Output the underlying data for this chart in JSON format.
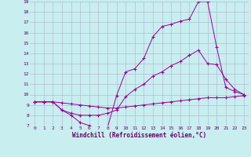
{
  "background_color": "#c8eef0",
  "grid_color": "#b0b0cc",
  "line_color": "#990099",
  "marker": "+",
  "xlim": [
    -0.5,
    23.5
  ],
  "ylim": [
    7,
    19
  ],
  "xticks": [
    0,
    1,
    2,
    3,
    4,
    5,
    6,
    7,
    8,
    9,
    10,
    11,
    12,
    13,
    14,
    15,
    16,
    17,
    18,
    19,
    20,
    21,
    22,
    23
  ],
  "yticks": [
    7,
    8,
    9,
    10,
    11,
    12,
    13,
    14,
    15,
    16,
    17,
    18,
    19
  ],
  "xlabel": "Windchill (Refroidissement éolien,°C)",
  "series": [
    [
      9.3,
      9.3,
      9.3,
      8.5,
      8.0,
      7.3,
      7.0,
      6.8,
      6.8,
      9.9,
      12.2,
      12.5,
      13.5,
      15.6,
      16.6,
      16.8,
      17.1,
      17.3,
      19.0,
      19.0,
      14.6,
      10.7,
      10.3,
      10.0
    ],
    [
      9.3,
      9.3,
      9.3,
      8.5,
      8.2,
      8.0,
      8.0,
      8.0,
      8.2,
      8.5,
      9.8,
      10.5,
      11.0,
      11.8,
      12.2,
      12.8,
      13.2,
      13.8,
      14.3,
      13.0,
      12.9,
      11.5,
      10.5,
      10.0
    ],
    [
      9.3,
      9.3,
      9.3,
      9.2,
      9.1,
      9.0,
      8.9,
      8.8,
      8.7,
      8.7,
      8.8,
      8.9,
      9.0,
      9.1,
      9.2,
      9.3,
      9.4,
      9.5,
      9.6,
      9.7,
      9.7,
      9.7,
      9.8,
      9.9
    ]
  ],
  "tick_fontsize": 4.5,
  "axis_fontsize": 5.5
}
